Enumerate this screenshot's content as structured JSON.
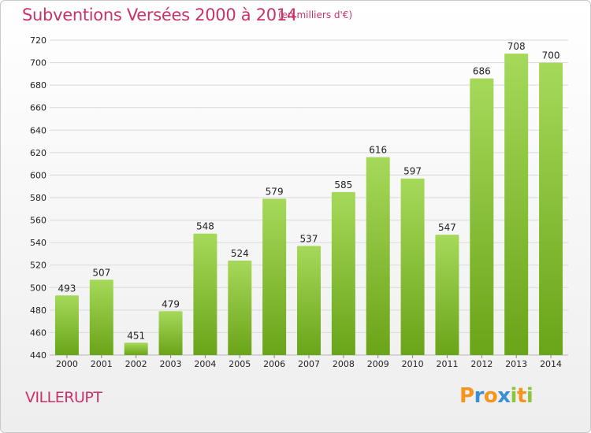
{
  "header": {
    "title": "Subventions Versées 2000 à 2014",
    "unit": "(en milliers d'€)"
  },
  "footer": {
    "city": "VILLERUPT",
    "logo": [
      "P",
      "r",
      "o",
      "x",
      "i",
      "t",
      "i"
    ]
  },
  "colors": {
    "title": "#c8326b",
    "bar_light": "#a6d95a",
    "bar_dark": "#6aa418",
    "grid": "#d9d9d9",
    "axis_text": "#222222",
    "logo": [
      "#f7941d",
      "#3b8fd6",
      "#f7941d",
      "#3b8fd6",
      "#8cc63f",
      "#f7941d",
      "#8cc63f"
    ]
  },
  "chart_data": {
    "type": "bar",
    "title": "Subventions Versées 2000 à 2014",
    "subtitle": "(en milliers d'€)",
    "categories": [
      "2000",
      "2001",
      "2002",
      "2003",
      "2004",
      "2005",
      "2006",
      "2007",
      "2008",
      "2009",
      "2010",
      "2011",
      "2012",
      "2013",
      "2014"
    ],
    "values": [
      493,
      507,
      451,
      479,
      548,
      524,
      579,
      537,
      585,
      616,
      597,
      547,
      686,
      708,
      700
    ],
    "ylim": [
      440,
      720
    ],
    "yticks": [
      440,
      460,
      480,
      500,
      520,
      540,
      560,
      580,
      600,
      620,
      640,
      660,
      680,
      700,
      720
    ],
    "grid": true,
    "data_labels": true
  }
}
